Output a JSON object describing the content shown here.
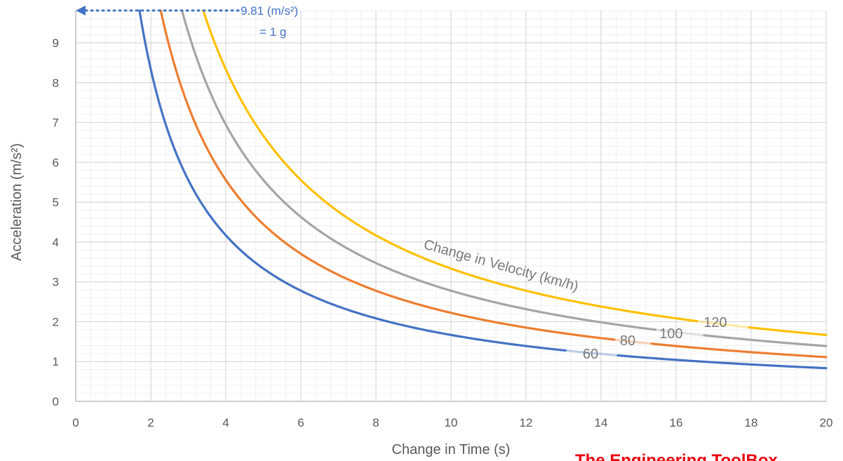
{
  "chart_data": {
    "type": "line",
    "xlabel": "Change in Time (s)",
    "ylabel": "Acceleration (m/s²)",
    "xlim": [
      0,
      20
    ],
    "ylim": [
      0,
      9.81
    ],
    "x_ticks": [
      0,
      2,
      4,
      6,
      8,
      10,
      12,
      14,
      16,
      18,
      20
    ],
    "y_ticks": [
      0,
      1,
      2,
      3,
      4,
      5,
      6,
      7,
      8,
      9
    ],
    "grid": true,
    "grid_minor": true,
    "legend": "none",
    "series": [
      {
        "name": "60",
        "delta_v_kmh": 60,
        "color": "#4472c4",
        "x": [
          1.7,
          2,
          2.5,
          3,
          3.5,
          4,
          5,
          6,
          7,
          8,
          9,
          10,
          12,
          14,
          16,
          18,
          20
        ],
        "values": [
          9.81,
          8.33,
          6.67,
          5.56,
          4.76,
          4.17,
          3.33,
          2.78,
          2.38,
          2.08,
          1.85,
          1.67,
          1.39,
          1.19,
          1.04,
          0.93,
          0.83
        ]
      },
      {
        "name": "80",
        "delta_v_kmh": 80,
        "color": "#ed7d31",
        "x": [
          2.27,
          2.5,
          3,
          3.5,
          4,
          5,
          6,
          7,
          8,
          9,
          10,
          12,
          14,
          16,
          18,
          20
        ],
        "values": [
          9.81,
          8.89,
          7.41,
          6.35,
          5.56,
          4.44,
          3.7,
          3.17,
          2.78,
          2.47,
          2.22,
          1.85,
          1.59,
          1.39,
          1.23,
          1.11
        ]
      },
      {
        "name": "100",
        "delta_v_kmh": 100,
        "color": "#a5a5a5",
        "x": [
          2.83,
          3,
          3.5,
          4,
          5,
          6,
          7,
          8,
          9,
          10,
          12,
          14,
          16,
          18,
          20
        ],
        "values": [
          9.81,
          9.26,
          7.94,
          6.94,
          5.56,
          4.63,
          3.97,
          3.47,
          3.09,
          2.78,
          2.31,
          1.98,
          1.74,
          1.54,
          1.39
        ]
      },
      {
        "name": "120",
        "delta_v_kmh": 120,
        "color": "#ffc000",
        "x": [
          3.4,
          3.5,
          4,
          5,
          6,
          7,
          8,
          9,
          10,
          12,
          14,
          16,
          18,
          20
        ],
        "values": [
          9.81,
          9.52,
          8.33,
          6.67,
          5.56,
          4.76,
          4.17,
          3.7,
          3.33,
          2.78,
          2.38,
          2.08,
          1.85,
          1.67
        ]
      }
    ],
    "annotations": {
      "g_line_value": "9.81 (m/s²)",
      "g_line_equals": "= 1 g",
      "curve_family_label": "Change in Velocity (km/h)"
    }
  },
  "watermark": "The Engineering ToolBox"
}
